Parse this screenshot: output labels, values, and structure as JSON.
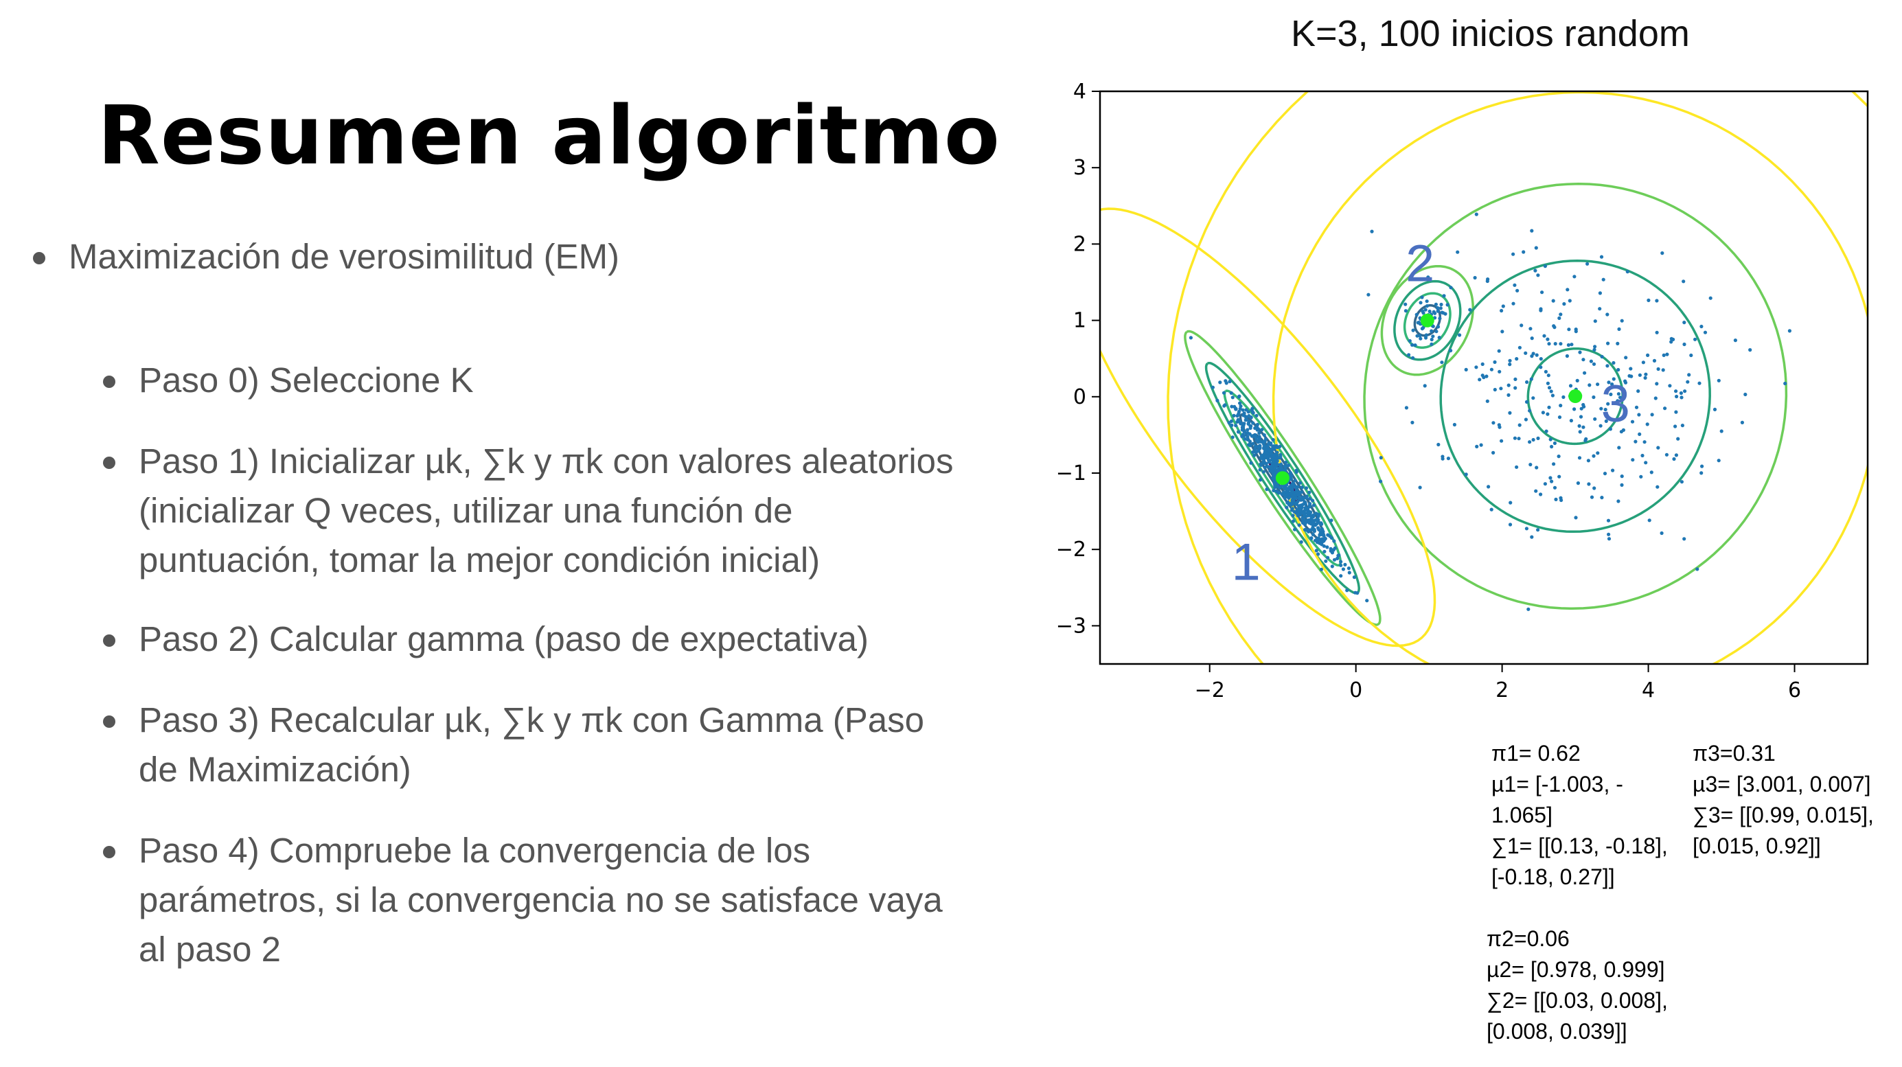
{
  "slide": {
    "title": "Resumen algoritmo",
    "bullets": [
      {
        "text": "Maximización de verosimilitud (EM)",
        "level": 1
      },
      {
        "text": "Paso 0) Seleccione K",
        "level": 2
      },
      {
        "text": "Paso 1) Inicializar µk, ∑k y πk con valores aleatorios (inicializar Q veces, utilizar una función de puntuación, tomar la mejor condición inicial)",
        "level": 2
      },
      {
        "text": "Paso 2) Calcular gamma (paso de expectativa)",
        "level": 2
      },
      {
        "text": "Paso 3) Recalcular µk, ∑k y πk con Gamma (Paso de Maximización)",
        "level": 2
      },
      {
        "text": "Paso 4) Compruebe la convergencia de los parámetros, si la convergencia no se satisface vaya al paso 2",
        "level": 2
      }
    ]
  },
  "chart_data": {
    "type": "scatter",
    "title": "K=3, 100 inicios random",
    "xlabel": "",
    "ylabel": "",
    "xlim": [
      -3.5,
      7
    ],
    "ylim": [
      -3.5,
      4
    ],
    "x_ticks": [
      "−2",
      "0",
      "2",
      "4",
      "6"
    ],
    "x_tick_values": [
      -2,
      0,
      2,
      4,
      6
    ],
    "y_ticks": [
      "4",
      "3",
      "2",
      "1",
      "0",
      "−1",
      "−2",
      "−3"
    ],
    "y_tick_values": [
      4,
      3,
      2,
      1,
      0,
      -1,
      -2,
      -3
    ],
    "grid": false,
    "colors": {
      "points": "#1f77b4",
      "means": "#22ee22",
      "label_text": "#4a6fc0"
    },
    "contour_colors": [
      "#440154",
      "#31688e",
      "#35b779",
      "#26a07a",
      "#6dcd59",
      "#fde725"
    ],
    "clusters": [
      {
        "label": "1",
        "pi": 0.62,
        "mean": [
          -1.003,
          -1.065
        ],
        "cov": [
          [
            0.13,
            -0.18
          ],
          [
            -0.18,
            0.27
          ]
        ]
      },
      {
        "label": "2",
        "pi": 0.06,
        "mean": [
          0.978,
          0.999
        ],
        "cov": [
          [
            0.03,
            0.008
          ],
          [
            0.008,
            0.039
          ]
        ]
      },
      {
        "label": "3",
        "pi": 0.31,
        "mean": [
          3.001,
          0.007
        ],
        "cov": [
          [
            0.99,
            0.015
          ],
          [
            0.015,
            0.92
          ]
        ]
      }
    ]
  },
  "params": {
    "pi1": "π1= 0.62",
    "mu1_a": "µ1= [-1.003, -",
    "mu1_b": "1.065]",
    "sig1_a": "∑1= [[0.13, -0.18],",
    "sig1_b": "[-0.18, 0.27]]",
    "pi3": "π3=0.31",
    "mu3": "µ3= [3.001, 0.007]",
    "sig3_a": "∑3= [[0.99, 0.015],",
    "sig3_b": "[0.015, 0.92]]",
    "pi2": "π2=0.06",
    "mu2": "µ2= [0.978, 0.999]",
    "sig2_a": "∑2= [[0.03, 0.008],",
    "sig2_b": "[0.008, 0.039]]"
  }
}
